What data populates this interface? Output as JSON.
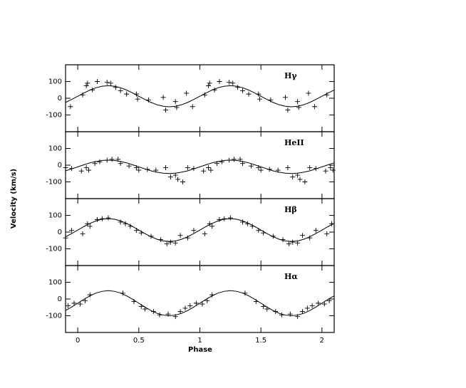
{
  "chart_data": [
    {
      "type": "scatter",
      "label": "Hγ",
      "ylabel": "Velocity (km/s)",
      "xlim": [
        -0.1,
        2.1
      ],
      "ylim": [
        -200,
        200
      ],
      "xticks": [
        0,
        0.5,
        1,
        1.5,
        2
      ],
      "yticks": [
        -100,
        0,
        100
      ],
      "series": [
        {
          "type": "scatter",
          "color": "#000000",
          "x": [
            -0.06,
            0.04,
            0.07,
            0.08,
            0.12,
            0.16,
            0.24,
            0.27,
            0.31,
            0.35,
            0.4,
            0.48,
            0.49,
            0.58,
            0.7,
            0.72,
            0.8,
            0.81,
            0.89,
            0.94,
            1.04,
            1.07,
            1.08,
            1.12,
            1.16,
            1.24,
            1.27,
            1.31,
            1.35,
            1.4,
            1.48,
            1.49,
            1.58,
            1.7,
            1.72,
            1.8,
            1.81,
            1.89,
            1.94,
            2.04
          ],
          "values": [
            -50,
            20,
            75,
            90,
            50,
            100,
            95,
            90,
            65,
            45,
            25,
            25,
            -5,
            -10,
            5,
            -70,
            -20,
            -55,
            30,
            -50,
            20,
            75,
            90,
            50,
            100,
            95,
            90,
            65,
            45,
            25,
            25,
            -5,
            -10,
            5,
            -70,
            -20,
            -55,
            30,
            -50,
            20
          ]
        },
        {
          "type": "line",
          "color": "#000000",
          "x": [
            -0.1,
            -0.05,
            0,
            0.05,
            0.1,
            0.15,
            0.2,
            0.25,
            0.3,
            0.35,
            0.4,
            0.45,
            0.5,
            0.55,
            0.6,
            0.65,
            0.7,
            0.75,
            0.8,
            0.85,
            0.9,
            0.95,
            1,
            1.05,
            1.1,
            1.15,
            1.2,
            1.25,
            1.3,
            1.35,
            1.4,
            1.45,
            1.5,
            1.55,
            1.6,
            1.65,
            1.7,
            1.75,
            1.8,
            1.85,
            1.9,
            1.95,
            2,
            2.05,
            2.1
          ],
          "values": [
            -25,
            -7,
            12,
            31,
            49,
            63,
            72,
            75,
            72,
            63,
            49,
            31,
            12,
            -7,
            -25,
            -39,
            -48,
            -51,
            -48,
            -39,
            -25,
            -7,
            12,
            31,
            49,
            63,
            72,
            75,
            72,
            63,
            49,
            31,
            12,
            -7,
            -25,
            -39,
            -48,
            -51,
            -48,
            -39,
            -25,
            -7,
            12,
            31,
            49
          ]
        }
      ]
    },
    {
      "type": "scatter",
      "label": "HeII",
      "xlim": [
        -0.1,
        2.1
      ],
      "ylim": [
        -200,
        200
      ],
      "xticks": [
        0,
        0.5,
        1,
        1.5,
        2
      ],
      "yticks": [
        -100,
        0,
        100
      ],
      "series": [
        {
          "type": "scatter",
          "color": "#000000",
          "x": [
            -0.1,
            -0.05,
            0.03,
            0.07,
            0.09,
            0.14,
            0.18,
            0.24,
            0.28,
            0.33,
            0.35,
            0.42,
            0.48,
            0.5,
            0.57,
            0.64,
            0.72,
            0.76,
            0.8,
            0.82,
            0.86,
            0.9,
            0.95,
            1.03,
            1.07,
            1.09,
            1.14,
            1.18,
            1.24,
            1.28,
            1.33,
            1.35,
            1.42,
            1.48,
            1.5,
            1.57,
            1.64,
            1.72,
            1.76,
            1.8,
            1.82,
            1.86,
            1.9,
            1.95,
            2.03,
            2.07,
            2.09
          ],
          "values": [
            -15,
            -20,
            -35,
            -15,
            -30,
            10,
            20,
            30,
            35,
            35,
            10,
            -5,
            -15,
            -30,
            -25,
            -30,
            -15,
            -70,
            -60,
            -85,
            -100,
            -15,
            -20,
            -35,
            -15,
            -30,
            10,
            20,
            30,
            35,
            35,
            10,
            -5,
            -15,
            -30,
            -25,
            -30,
            -15,
            -70,
            -60,
            -85,
            -100,
            -15,
            -20,
            -35,
            -15,
            -30
          ]
        },
        {
          "type": "line",
          "color": "#000000",
          "x": [
            -0.1,
            -0.05,
            0,
            0.05,
            0.1,
            0.15,
            0.2,
            0.25,
            0.3,
            0.35,
            0.4,
            0.45,
            0.5,
            0.55,
            0.6,
            0.65,
            0.7,
            0.75,
            0.8,
            0.85,
            0.9,
            0.95,
            1,
            1.05,
            1.1,
            1.15,
            1.2,
            1.25,
            1.3,
            1.35,
            1.4,
            1.45,
            1.5,
            1.55,
            1.6,
            1.65,
            1.7,
            1.75,
            1.8,
            1.85,
            1.9,
            1.95,
            2,
            2.05,
            2.1
          ],
          "values": [
            -34,
            -22,
            -10,
            2,
            14,
            22,
            28,
            30,
            28,
            22,
            14,
            2,
            -10,
            -22,
            -34,
            -42,
            -48,
            -50,
            -48,
            -42,
            -34,
            -22,
            -10,
            2,
            14,
            22,
            28,
            30,
            28,
            22,
            14,
            2,
            -10,
            -22,
            -34,
            -42,
            -48,
            -50,
            -48,
            -42,
            -34,
            -22,
            -10,
            2,
            14
          ]
        }
      ]
    },
    {
      "type": "scatter",
      "label": "Hβ",
      "xlim": [
        -0.1,
        2.1
      ],
      "ylim": [
        -200,
        200
      ],
      "xticks": [
        0,
        0.5,
        1,
        1.5,
        2
      ],
      "yticks": [
        -100,
        0,
        100
      ],
      "series": [
        {
          "type": "scatter",
          "color": "#000000",
          "x": [
            -0.1,
            -0.05,
            0.04,
            0.08,
            0.1,
            0.16,
            0.2,
            0.25,
            0.35,
            0.39,
            0.43,
            0.48,
            0.52,
            0.6,
            0.68,
            0.73,
            0.76,
            0.8,
            0.84,
            0.9,
            0.95,
            1.04,
            1.08,
            1.1,
            1.16,
            1.2,
            1.25,
            1.35,
            1.39,
            1.43,
            1.48,
            1.52,
            1.6,
            1.68,
            1.73,
            1.76,
            1.8,
            1.84,
            1.9,
            1.95,
            2.04,
            2.08
          ],
          "values": [
            -35,
            10,
            -10,
            50,
            35,
            75,
            80,
            85,
            60,
            50,
            35,
            10,
            -5,
            -25,
            -45,
            -70,
            -60,
            -65,
            -20,
            -35,
            10,
            -10,
            50,
            35,
            75,
            80,
            85,
            60,
            50,
            35,
            10,
            -5,
            -25,
            -45,
            -70,
            -60,
            -65,
            -20,
            -35,
            10,
            -10,
            50
          ]
        },
        {
          "type": "line",
          "color": "#000000",
          "x": [
            -0.1,
            -0.05,
            0,
            0.05,
            0.1,
            0.15,
            0.2,
            0.25,
            0.3,
            0.35,
            0.4,
            0.45,
            0.5,
            0.55,
            0.6,
            0.65,
            0.7,
            0.75,
            0.8,
            0.85,
            0.9,
            0.95,
            1,
            1.05,
            1.1,
            1.15,
            1.2,
            1.25,
            1.3,
            1.35,
            1.4,
            1.45,
            1.5,
            1.55,
            1.6,
            1.65,
            1.7,
            1.75,
            1.8,
            1.85,
            1.9,
            1.95,
            2,
            2.05,
            2.1
          ],
          "values": [
            -28,
            -9,
            12,
            33,
            52,
            67,
            77,
            80,
            77,
            67,
            52,
            33,
            12,
            -9,
            -28,
            -43,
            -53,
            -56,
            -53,
            -43,
            -28,
            -9,
            12,
            33,
            52,
            67,
            77,
            80,
            77,
            67,
            52,
            33,
            12,
            -9,
            -28,
            -43,
            -53,
            -56,
            -53,
            -43,
            -28,
            -9,
            12,
            33,
            52
          ]
        }
      ]
    },
    {
      "type": "scatter",
      "label": "Hα",
      "xlabel": "Phase",
      "xlim": [
        -0.1,
        2.1
      ],
      "ylim": [
        -200,
        200
      ],
      "xticks": [
        0,
        0.5,
        1,
        1.5,
        2
      ],
      "yticks": [
        -100,
        0,
        100
      ],
      "series": [
        {
          "type": "scatter",
          "color": "#000000",
          "x": [
            -0.08,
            -0.03,
            0.02,
            0.06,
            0.1,
            0.37,
            0.46,
            0.52,
            0.55,
            0.62,
            0.67,
            0.74,
            0.8,
            0.84,
            0.88,
            0.92,
            0.97,
            1.02,
            1.06,
            1.1,
            1.37,
            1.46,
            1.52,
            1.55,
            1.62,
            1.67,
            1.74,
            1.8,
            1.84,
            1.88,
            1.92,
            1.97,
            2.02,
            2.06
          ],
          "values": [
            -40,
            -25,
            -30,
            -10,
            25,
            35,
            -15,
            -45,
            -60,
            -75,
            -95,
            -90,
            -105,
            -75,
            -55,
            -40,
            -25,
            -30,
            -10,
            25,
            35,
            -15,
            -45,
            -60,
            -75,
            -95,
            -90,
            -105,
            -75,
            -55,
            -40,
            -25,
            -30,
            -10
          ]
        },
        {
          "type": "line",
          "color": "#000000",
          "x": [
            -0.1,
            -0.05,
            0,
            0.05,
            0.1,
            0.15,
            0.2,
            0.25,
            0.3,
            0.35,
            0.4,
            0.45,
            0.5,
            0.55,
            0.6,
            0.65,
            0.7,
            0.75,
            0.8,
            0.85,
            0.9,
            0.95,
            1,
            1.05,
            1.1,
            1.15,
            1.2,
            1.25,
            1.3,
            1.35,
            1.4,
            1.45,
            1.5,
            1.55,
            1.6,
            1.65,
            1.7,
            1.75,
            1.8,
            1.85,
            1.9,
            1.95,
            2,
            2.05,
            2.1
          ],
          "values": [
            -69,
            -48,
            -25,
            -2,
            19,
            36,
            46,
            50,
            46,
            36,
            19,
            -2,
            -25,
            -48,
            -69,
            -86,
            -96,
            -100,
            -96,
            -86,
            -69,
            -48,
            -25,
            -2,
            19,
            36,
            46,
            50,
            46,
            36,
            19,
            -2,
            -25,
            -48,
            -69,
            -86,
            -96,
            -100,
            -96,
            -86,
            -69,
            -48,
            -25,
            -2,
            19
          ]
        }
      ]
    }
  ]
}
